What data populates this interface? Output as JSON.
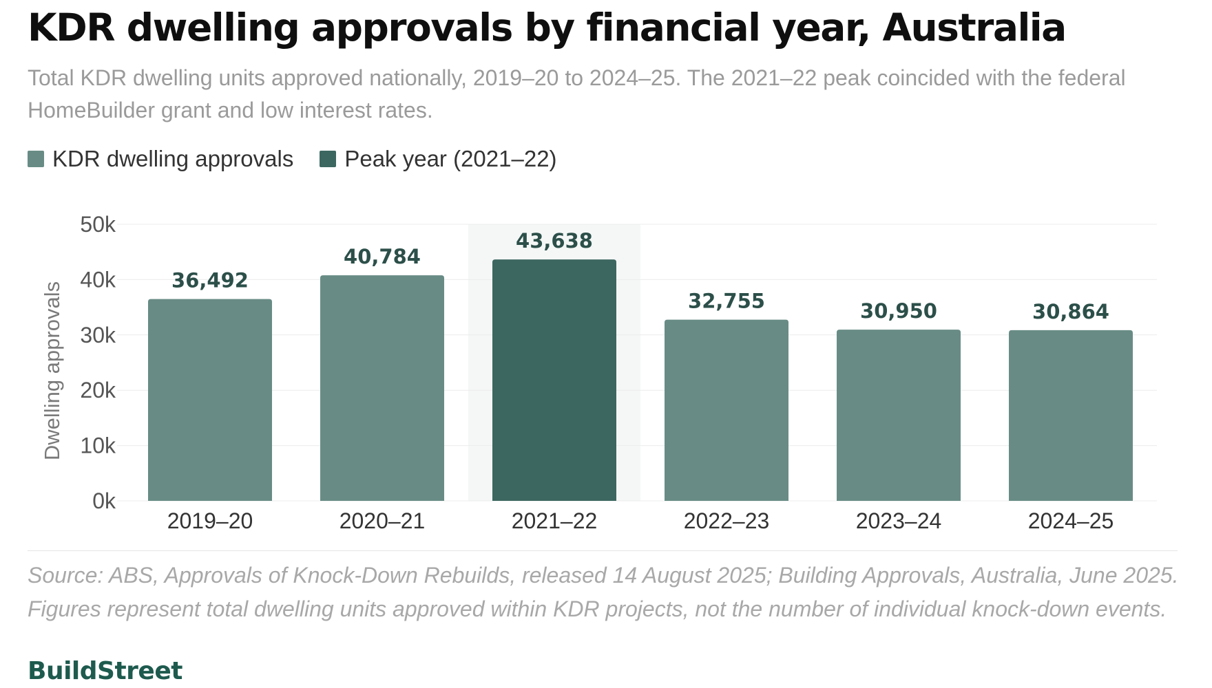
{
  "title": "KDR dwelling approvals by financial year, Australia",
  "subtitle": "Total KDR dwelling units approved nationally, 2019–20 to 2024–25. The 2021–22 peak coincided with the federal HomeBuilder grant and low interest rates.",
  "legend": [
    {
      "label": "KDR dwelling approvals",
      "color": "#688c85"
    },
    {
      "label": "Peak year (2021–22)",
      "color": "#3c6760"
    }
  ],
  "chart_data": {
    "type": "bar",
    "categories": [
      "2019–20",
      "2020–21",
      "2021–22",
      "2022–23",
      "2023–24",
      "2024–25"
    ],
    "values": [
      36492,
      40784,
      43638,
      32755,
      30950,
      30864
    ],
    "value_labels": [
      "36,492",
      "40,784",
      "43,638",
      "32,755",
      "30,950",
      "30,864"
    ],
    "highlight_index": 2,
    "ylabel": "Dwelling approvals",
    "ylim": [
      0,
      50000
    ],
    "yticks": [
      0,
      10000,
      20000,
      30000,
      40000,
      50000
    ],
    "ytick_labels": [
      "0k",
      "10k",
      "20k",
      "30k",
      "40k",
      "50k"
    ],
    "grid": true,
    "legend_position": "top-left",
    "colors": {
      "bar": "#688c85",
      "peak": "#3c6760",
      "highlight_band": "#f4f7f6",
      "value_label": "#2c4f49",
      "grid": "#ececec",
      "tick_label": "#555555"
    }
  },
  "source": "Source: ABS, Approvals of Knock-Down Rebuilds, released 14 August 2025; Building Approvals, Australia, June 2025. Figures represent total dwelling units approved within KDR projects, not the number of individual knock-down events.",
  "brand": "BuildStreet"
}
